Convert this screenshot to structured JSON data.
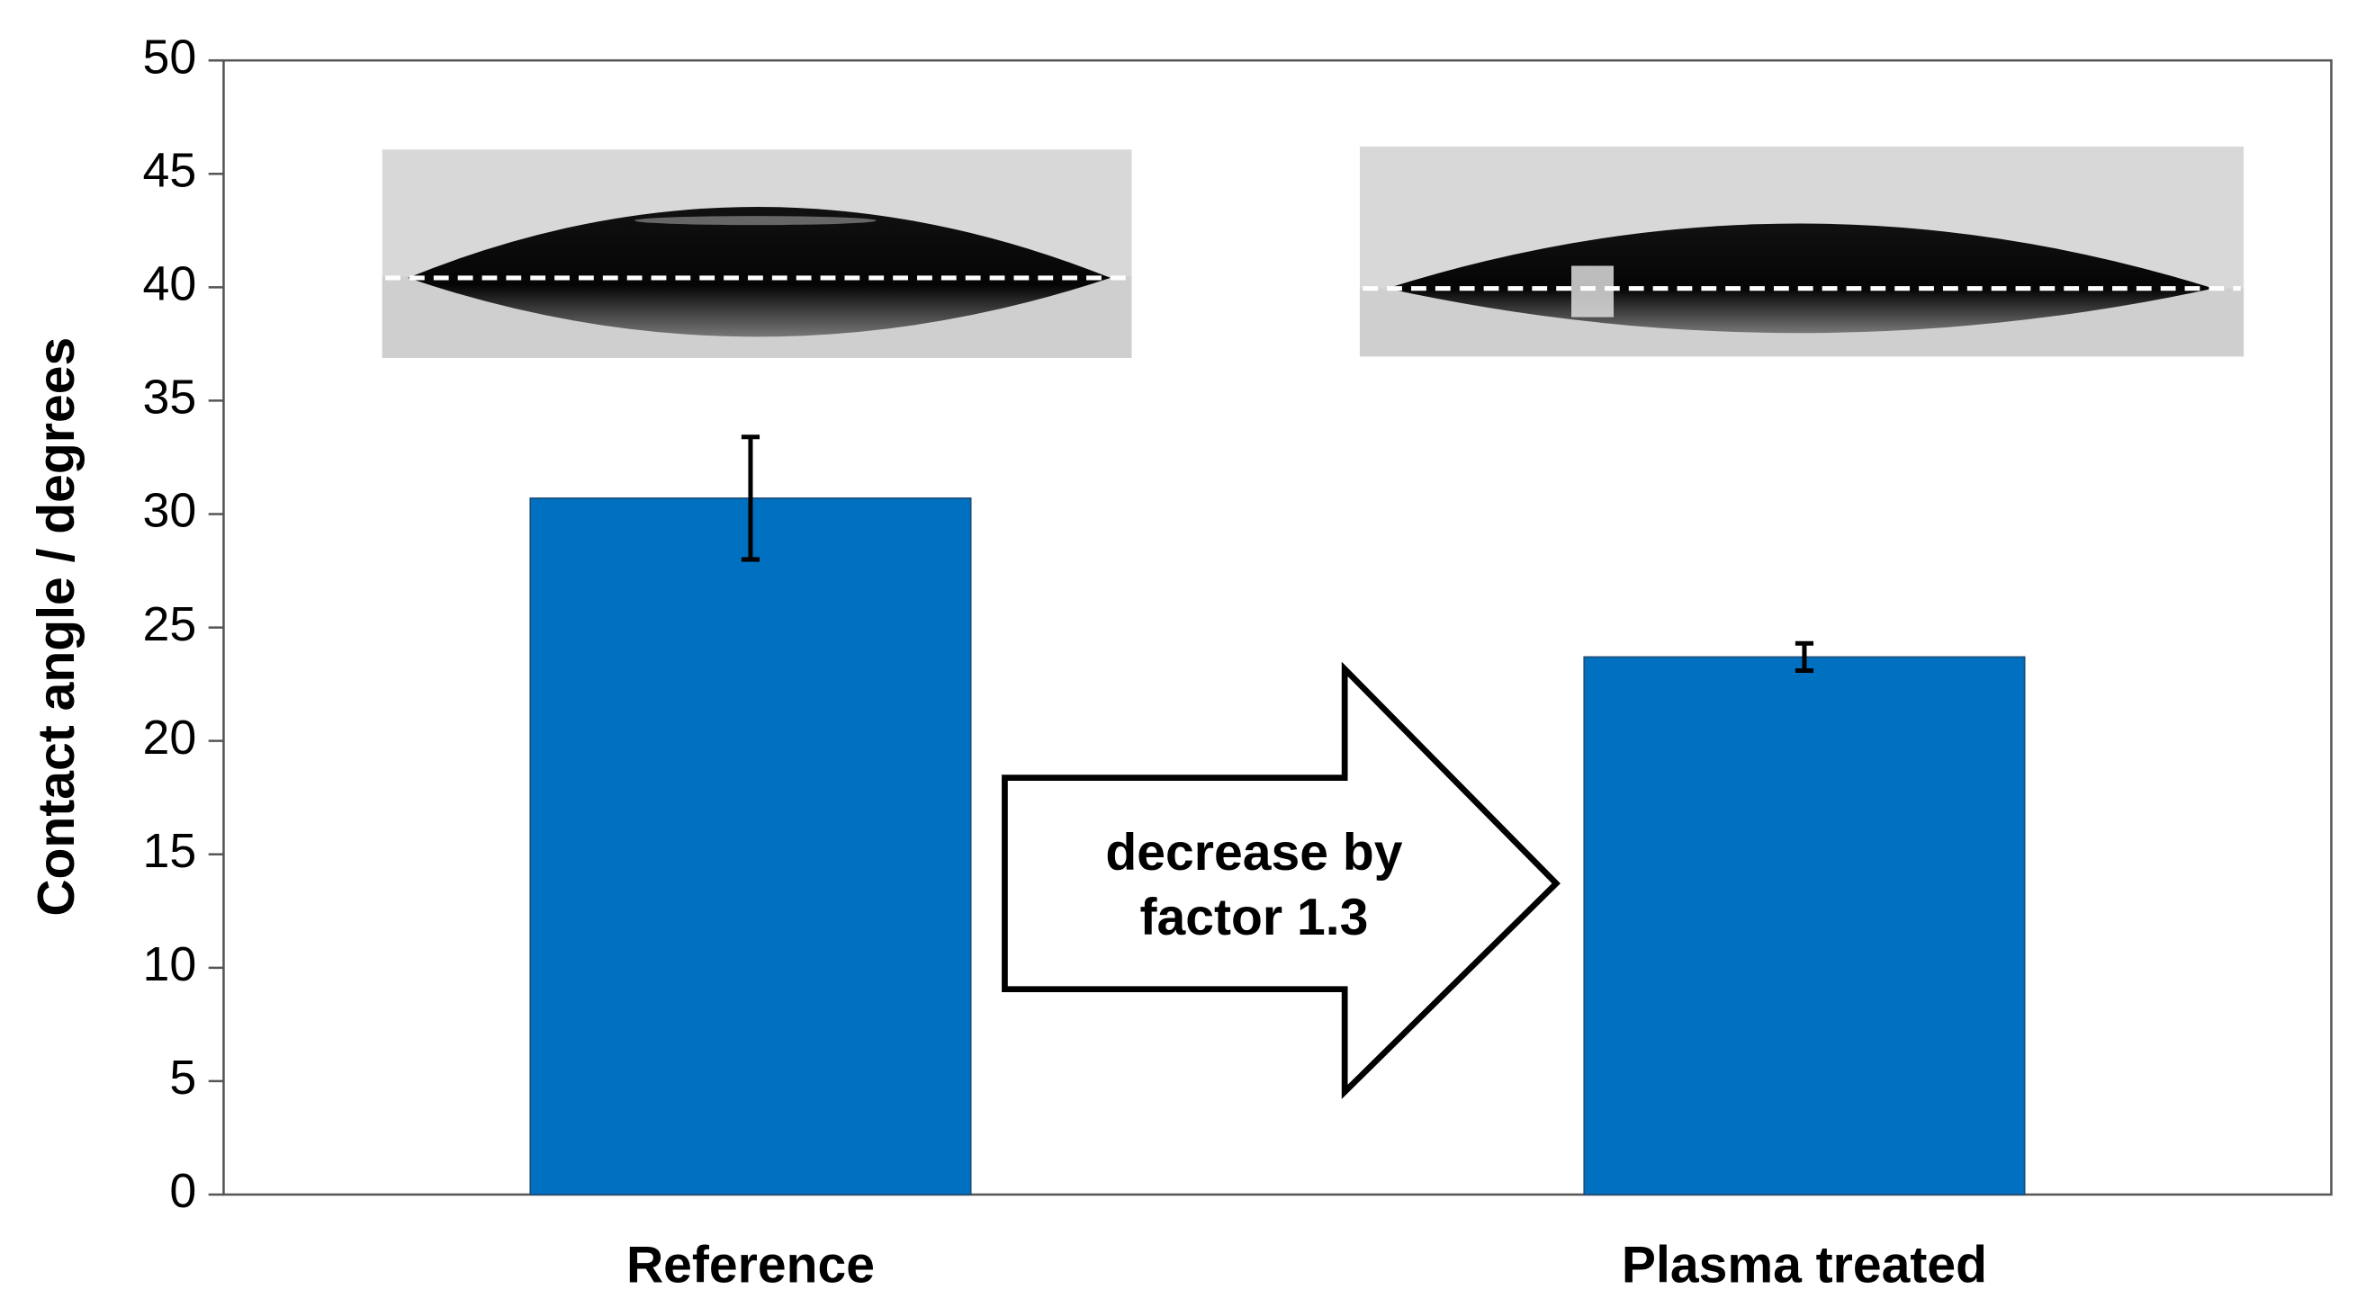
{
  "chart_data": {
    "type": "bar",
    "ylabel": "Contact angle / degrees",
    "categories": [
      "Reference",
      "Plasma treated"
    ],
    "values": [
      30.7,
      23.7
    ],
    "errors": [
      2.7,
      0.6
    ],
    "color": "#0070c0",
    "ylim": [
      0,
      50
    ],
    "yticks": [
      0,
      5,
      10,
      15,
      20,
      25,
      30,
      35,
      40,
      45,
      50
    ],
    "annotation": [
      "decrease by",
      "factor 1.3"
    ]
  }
}
